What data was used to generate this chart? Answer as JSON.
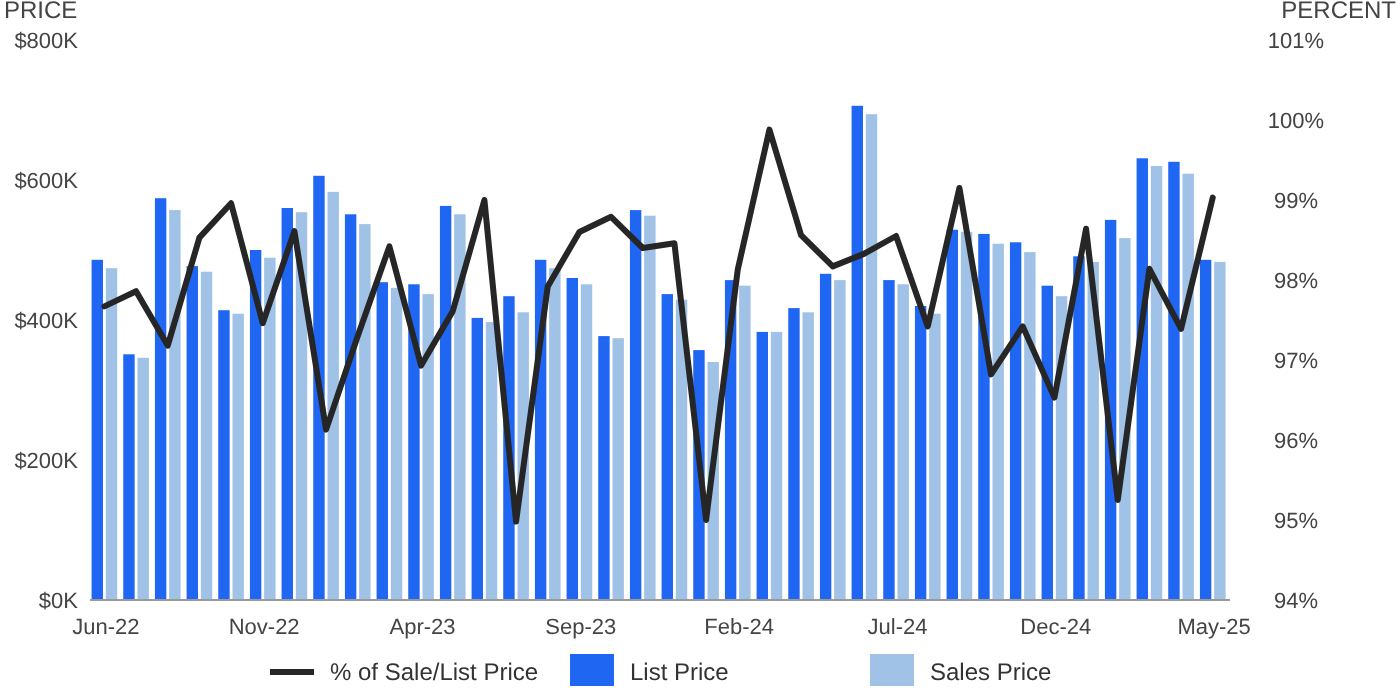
{
  "chart_data": {
    "type": "bar",
    "categories": [
      "Jun-22",
      null,
      null,
      null,
      null,
      "Nov-22",
      null,
      null,
      null,
      null,
      "Apr-23",
      null,
      null,
      null,
      null,
      "Sep-23",
      null,
      null,
      null,
      null,
      "Feb-24",
      null,
      null,
      null,
      null,
      "Jul-24",
      null,
      null,
      null,
      null,
      "Dec-24",
      null,
      null,
      null,
      null,
      "May-25"
    ],
    "series": [
      {
        "name": "% of Sale/List Price",
        "type": "line",
        "axis": "y2",
        "color": "#262626",
        "values": [
          97.67,
          97.86,
          97.18,
          98.53,
          98.96,
          97.46,
          98.61,
          96.13,
          97.3,
          98.42,
          96.93,
          97.61,
          99.0,
          94.98,
          97.92,
          98.6,
          98.79,
          98.4,
          98.46,
          95.0,
          98.13,
          99.88,
          98.56,
          98.17,
          98.33,
          98.55,
          97.42,
          99.15,
          96.82,
          97.42,
          96.53,
          98.64,
          95.25,
          98.14,
          97.39,
          99.03
        ]
      },
      {
        "name": "List Price",
        "color": "#1f66f2",
        "values": [
          486000,
          351000,
          574000,
          477000,
          414000,
          500000,
          560000,
          606000,
          551000,
          454000,
          451000,
          563000,
          403000,
          434000,
          486000,
          460000,
          377000,
          557000,
          437000,
          357000,
          457000,
          383000,
          417000,
          466000,
          706000,
          457000,
          420000,
          529000,
          523000,
          511000,
          449000,
          491000,
          543000,
          631000,
          626000,
          486000
        ]
      },
      {
        "name": "Sales Price",
        "color": "#9fc2e6",
        "values": [
          474000,
          346000,
          557000,
          469000,
          409000,
          489000,
          554000,
          583000,
          537000,
          446000,
          437000,
          551000,
          397000,
          411000,
          474000,
          451000,
          374000,
          549000,
          429000,
          340000,
          449000,
          383000,
          411000,
          457000,
          694000,
          451000,
          409000,
          526000,
          509000,
          497000,
          434000,
          483000,
          517000,
          620000,
          609000,
          483000
        ]
      }
    ],
    "ylabel": "PRICE",
    "y2label": "PERCENT",
    "ylim": [
      0,
      800000
    ],
    "yticks": [
      {
        "value": 0,
        "label": "$0K"
      },
      {
        "value": 200000,
        "label": "$200K"
      },
      {
        "value": 400000,
        "label": "$400K"
      },
      {
        "value": 600000,
        "label": "$600K"
      },
      {
        "value": 800000,
        "label": "$800K"
      }
    ],
    "y2lim": [
      94,
      101
    ],
    "y2ticks": [
      {
        "value": 94,
        "label": "94%"
      },
      {
        "value": 95,
        "label": "95%"
      },
      {
        "value": 96,
        "label": "96%"
      },
      {
        "value": 97,
        "label": "97%"
      },
      {
        "value": 98,
        "label": "98%"
      },
      {
        "value": 99,
        "label": "99%"
      },
      {
        "value": 100,
        "label": "100%"
      },
      {
        "value": 101,
        "label": "101%"
      }
    ],
    "legend": "bottom",
    "marker": "none",
    "line_style": "solid"
  }
}
